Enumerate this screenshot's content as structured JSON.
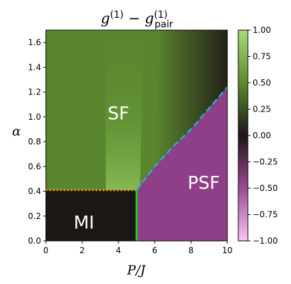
{
  "chart_data": {
    "type": "heatmap",
    "title": {
      "main": "g",
      "sup1": "(1)",
      "minus": " − g",
      "sub2": "pair",
      "sup2": "(1)"
    },
    "xlabel": "P/J",
    "ylabel": "α",
    "xlim": [
      0,
      10
    ],
    "ylim": [
      0,
      1.7
    ],
    "x_ticks": [
      "0",
      "2",
      "4",
      "6",
      "8",
      "10"
    ],
    "y_ticks": [
      "0.0",
      "0.2",
      "0.4",
      "0.6",
      "0.8",
      "1.0",
      "1.2",
      "1.4",
      "1.6"
    ],
    "colorbar": {
      "range": [
        -1.0,
        1.0
      ],
      "ticks": [
        "1.00",
        "0.75",
        "0.50",
        "0.25",
        "0.00",
        "−0.25",
        "−0.50",
        "−0.75",
        "−1.00"
      ],
      "colors": [
        "#f6c6f0",
        "#9c4a95",
        "#1c1614",
        "#5c8a2f",
        "#a6dc74"
      ]
    },
    "regions": [
      {
        "label": "SF",
        "x": 4.0,
        "y": 1.03
      },
      {
        "label": "PSF",
        "x": 8.7,
        "y": 0.47
      },
      {
        "label": "MI",
        "x": 2.1,
        "y": 0.15
      }
    ],
    "boundaries": {
      "mi_sf_alpha": 0.41,
      "mi_psf_P": 5.0,
      "sf_psf_curve": [
        [
          5.0,
          0.41
        ],
        [
          6.0,
          0.6
        ],
        [
          7.0,
          0.76
        ],
        [
          8.0,
          0.9
        ],
        [
          9.0,
          1.07
        ],
        [
          10.0,
          1.24
        ]
      ]
    },
    "line_colors": {
      "dotted": "#f5a00a",
      "solid": "#22d31c",
      "dashed": "#19b6c4"
    },
    "region_values": {
      "SF": 0.5,
      "PSF": -0.5,
      "MI": 0.0
    }
  }
}
